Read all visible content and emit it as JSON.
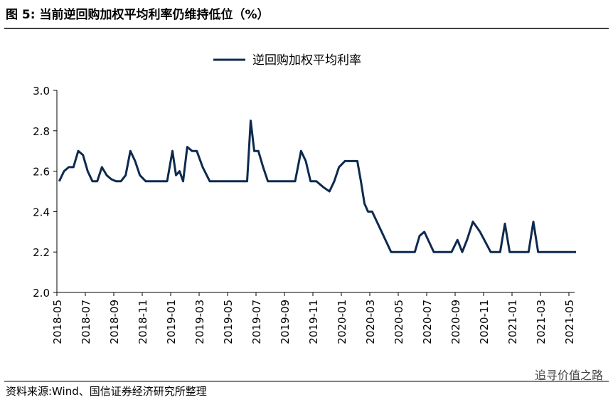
{
  "header": "图 5:  当前逆回购加权平均利率仍维持低位（%）",
  "source": "资料来源:Wind、国信证券经济研究所整理",
  "watermark": "追寻价值之路",
  "chart_data": {
    "type": "line",
    "x": [
      "2018-05",
      "2018-05",
      "2018-05",
      "2018-06",
      "2018-06",
      "2018-06",
      "2018-07",
      "2018-07",
      "2018-07",
      "2018-08",
      "2018-08",
      "2018-08",
      "2018-09",
      "2018-09",
      "2018-09",
      "2018-10",
      "2018-10",
      "2018-10",
      "2018-11",
      "2018-11",
      "2018-12",
      "2018-12",
      "2019-01",
      "2019-01",
      "2019-01",
      "2019-01",
      "2019-02",
      "2019-02",
      "2019-02",
      "2019-03",
      "2019-03",
      "2019-04",
      "2019-05",
      "2019-06",
      "2019-06",
      "2019-06",
      "2019-06",
      "2019-07",
      "2019-07",
      "2019-07",
      "2019-08",
      "2019-09",
      "2019-09",
      "2019-10",
      "2019-10",
      "2019-10",
      "2019-11",
      "2019-11",
      "2019-12",
      "2019-12",
      "2019-12",
      "2020-01",
      "2020-01",
      "2020-02",
      "2020-02",
      "2020-02",
      "2020-02",
      "2020-03",
      "2020-03",
      "2020-03",
      "2020-04",
      "2020-05",
      "2020-06",
      "2020-06",
      "2020-06",
      "2020-07",
      "2020-08",
      "2020-08",
      "2020-09",
      "2020-09",
      "2020-09",
      "2020-10",
      "2020-10",
      "2020-11",
      "2020-12",
      "2020-12",
      "2020-12",
      "2021-01",
      "2021-02",
      "2021-02",
      "2021-02",
      "2021-03",
      "2021-04",
      "2021-05"
    ],
    "series": [
      {
        "name": "逆回购加权平均利率",
        "color": "#0d2a4e",
        "values": [
          2.55,
          2.6,
          2.62,
          2.62,
          2.7,
          2.68,
          2.6,
          2.55,
          2.55,
          2.62,
          2.58,
          2.56,
          2.55,
          2.55,
          2.58,
          2.7,
          2.65,
          2.58,
          2.55,
          2.55,
          2.55,
          2.55,
          2.7,
          2.58,
          2.6,
          2.55,
          2.72,
          2.7,
          2.7,
          2.62,
          2.55,
          2.55,
          2.55,
          2.55,
          2.55,
          2.85,
          2.7,
          2.7,
          2.62,
          2.55,
          2.55,
          2.55,
          2.55,
          2.7,
          2.65,
          2.55,
          2.55,
          2.52,
          2.5,
          2.55,
          2.62,
          2.65,
          2.65,
          2.65,
          2.55,
          2.44,
          2.4,
          2.4,
          2.35,
          2.3,
          2.2,
          2.2,
          2.2,
          2.28,
          2.3,
          2.2,
          2.2,
          2.2,
          2.26,
          2.2,
          2.26,
          2.35,
          2.3,
          2.2,
          2.2,
          2.34,
          2.2,
          2.2,
          2.2,
          2.35,
          2.2,
          2.2,
          2.2,
          2.2
        ]
      }
    ],
    "xticks": [
      "2018-05",
      "2018-07",
      "2018-09",
      "2018-11",
      "2019-01",
      "2019-03",
      "2019-05",
      "2019-07",
      "2019-09",
      "2019-11",
      "2020-01",
      "2020-03",
      "2020-05",
      "2020-07",
      "2020-09",
      "2020-11",
      "2021-01",
      "2021-03",
      "2021-05"
    ],
    "ylim": [
      2.0,
      3.0
    ],
    "yticks": [
      {
        "value": 2.0,
        "label": "2.0"
      },
      {
        "value": 2.2,
        "label": "2.2"
      },
      {
        "value": 2.4,
        "label": "2.4"
      },
      {
        "value": 2.6,
        "label": "2.6"
      },
      {
        "value": 2.8,
        "label": "2.8"
      },
      {
        "value": 3.0,
        "label": "3.0"
      }
    ],
    "legend": "top"
  }
}
